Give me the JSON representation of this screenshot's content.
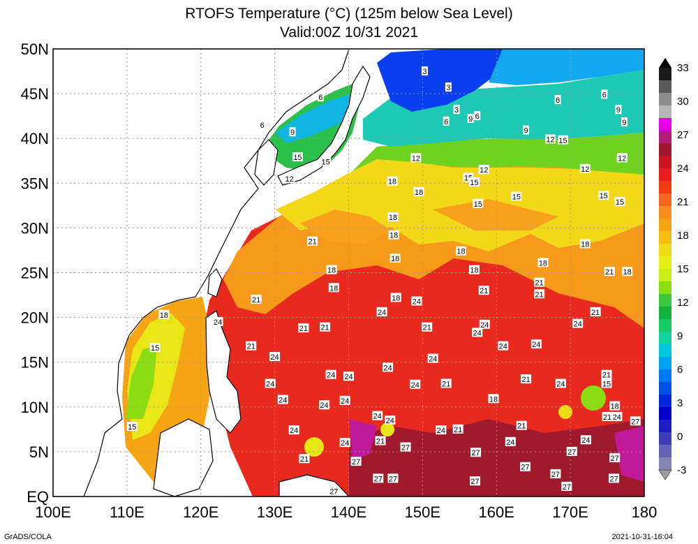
{
  "title_line1": "RTOFS Temperature (°C) (125m below Sea Level)",
  "title_line2": "Valid:00Z 10/31 2021",
  "footer_left": "GrADS/COLA",
  "footer_right": "2021-10-31-16:04",
  "lat_labels": [
    "50N",
    "45N",
    "40N",
    "35N",
    "30N",
    "25N",
    "20N",
    "15N",
    "10N",
    "5N",
    "EQ"
  ],
  "lon_labels": [
    "100E",
    "110E",
    "120E",
    "130E",
    "140E",
    "150E",
    "160E",
    "170E",
    "180"
  ],
  "colorbar": {
    "labels": [
      "33",
      "30",
      "27",
      "24",
      "21",
      "18",
      "15",
      "12",
      "9",
      "6",
      "3",
      "0",
      "-3"
    ],
    "colors": [
      "#1a1a1a",
      "#5a5a5a",
      "#8c8c8c",
      "#b4b4b4",
      "#e600e6",
      "#b01e78",
      "#a0182d",
      "#c8141e",
      "#e61e1e",
      "#f03c14",
      "#f5641e",
      "#fa8c1e",
      "#f5a514",
      "#f5be14",
      "#f0dc14",
      "#e6f014",
      "#c8f014",
      "#8cdc14",
      "#3cc83c",
      "#14b43c",
      "#14c864",
      "#14d2a0",
      "#00c8dc",
      "#00a0f0",
      "#0078f0",
      "#0050e6",
      "#0028dc",
      "#0000c8",
      "#1e1ebe",
      "#3c3cb4",
      "#6464b4",
      "#8282b4"
    ],
    "tip_top": "#000000",
    "tip_bottom": "#9e9e9e"
  },
  "contour_labels": [
    {
      "text": "3",
      "lon": 150.3,
      "lat": 47.5
    },
    {
      "text": "3",
      "lon": 153.5,
      "lat": 45.7
    },
    {
      "text": "6",
      "lon": 128.3,
      "lat": 41.5
    },
    {
      "text": "9",
      "lon": 132.4,
      "lat": 40.7
    },
    {
      "text": "6",
      "lon": 136.2,
      "lat": 44.6
    },
    {
      "text": "3",
      "lon": 154.6,
      "lat": 43.2
    },
    {
      "text": "6",
      "lon": 153.2,
      "lat": 41.9
    },
    {
      "text": "9",
      "lon": 156.5,
      "lat": 42.2
    },
    {
      "text": "6",
      "lon": 157.4,
      "lat": 42.5
    },
    {
      "text": "6",
      "lon": 168.3,
      "lat": 44.3
    },
    {
      "text": "6",
      "lon": 174.6,
      "lat": 44.9
    },
    {
      "text": "9",
      "lon": 176.5,
      "lat": 43.2
    },
    {
      "text": "9",
      "lon": 177.3,
      "lat": 41.8
    },
    {
      "text": "9",
      "lon": 164.0,
      "lat": 40.9
    },
    {
      "text": "12",
      "lon": 167.3,
      "lat": 39.9
    },
    {
      "text": "15",
      "lon": 169.0,
      "lat": 39.8
    },
    {
      "text": "15",
      "lon": 133.1,
      "lat": 37.9
    },
    {
      "text": "12",
      "lon": 149.1,
      "lat": 37.8
    },
    {
      "text": "12",
      "lon": 132.0,
      "lat": 35.5
    },
    {
      "text": "15",
      "lon": 136.9,
      "lat": 37.4
    },
    {
      "text": "12",
      "lon": 158.3,
      "lat": 36.5
    },
    {
      "text": "15",
      "lon": 156.2,
      "lat": 35.6
    },
    {
      "text": "15",
      "lon": 157.0,
      "lat": 35.1
    },
    {
      "text": "12",
      "lon": 172.0,
      "lat": 36.6
    },
    {
      "text": "12",
      "lon": 177.0,
      "lat": 37.8
    },
    {
      "text": "18",
      "lon": 145.9,
      "lat": 35.2
    },
    {
      "text": "18",
      "lon": 149.5,
      "lat": 34.0
    },
    {
      "text": "15",
      "lon": 157.5,
      "lat": 32.7
    },
    {
      "text": "15",
      "lon": 162.7,
      "lat": 33.5
    },
    {
      "text": "15",
      "lon": 174.5,
      "lat": 33.6
    },
    {
      "text": "15",
      "lon": 176.7,
      "lat": 32.9
    },
    {
      "text": "18",
      "lon": 146.0,
      "lat": 31.2
    },
    {
      "text": "21",
      "lon": 135.1,
      "lat": 28.5
    },
    {
      "text": "18",
      "lon": 146.1,
      "lat": 29.2
    },
    {
      "text": "18",
      "lon": 172.0,
      "lat": 28.2
    },
    {
      "text": "18",
      "lon": 155.2,
      "lat": 27.4
    },
    {
      "text": "18",
      "lon": 146.3,
      "lat": 26.6
    },
    {
      "text": "18",
      "lon": 137.7,
      "lat": 25.3
    },
    {
      "text": "18",
      "lon": 157.0,
      "lat": 25.3
    },
    {
      "text": "18",
      "lon": 166.3,
      "lat": 26.1
    },
    {
      "text": "21",
      "lon": 175.3,
      "lat": 25.1
    },
    {
      "text": "18",
      "lon": 177.7,
      "lat": 25.1
    },
    {
      "text": "18",
      "lon": 138.0,
      "lat": 23.3
    },
    {
      "text": "21",
      "lon": 158.3,
      "lat": 23.0
    },
    {
      "text": "21",
      "lon": 165.8,
      "lat": 23.9
    },
    {
      "text": "21",
      "lon": 165.8,
      "lat": 22.6
    },
    {
      "text": "18",
      "lon": 146.4,
      "lat": 22.2
    },
    {
      "text": "24",
      "lon": 149.2,
      "lat": 21.8
    },
    {
      "text": "21",
      "lon": 127.5,
      "lat": 22.0
    },
    {
      "text": "24",
      "lon": 144.5,
      "lat": 20.6
    },
    {
      "text": "21",
      "lon": 173.4,
      "lat": 20.6
    },
    {
      "text": "24",
      "lon": 122.3,
      "lat": 19.5
    },
    {
      "text": "18",
      "lon": 115.0,
      "lat": 20.3
    },
    {
      "text": "21",
      "lon": 133.9,
      "lat": 18.8
    },
    {
      "text": "21",
      "lon": 136.8,
      "lat": 18.9
    },
    {
      "text": "21",
      "lon": 150.6,
      "lat": 18.9
    },
    {
      "text": "24",
      "lon": 158.4,
      "lat": 19.2
    },
    {
      "text": "24",
      "lon": 157.4,
      "lat": 18.3
    },
    {
      "text": "24",
      "lon": 171.0,
      "lat": 19.3
    },
    {
      "text": "15",
      "lon": 113.8,
      "lat": 16.6
    },
    {
      "text": "21",
      "lon": 126.8,
      "lat": 16.8
    },
    {
      "text": "24",
      "lon": 160.9,
      "lat": 16.8
    },
    {
      "text": "24",
      "lon": 165.4,
      "lat": 17.0
    },
    {
      "text": "24",
      "lon": 130.0,
      "lat": 15.6
    },
    {
      "text": "24",
      "lon": 151.4,
      "lat": 15.4
    },
    {
      "text": "24",
      "lon": 145.3,
      "lat": 14.4
    },
    {
      "text": "24",
      "lon": 137.6,
      "lat": 13.6
    },
    {
      "text": "24",
      "lon": 140.0,
      "lat": 13.4
    },
    {
      "text": "21",
      "lon": 174.9,
      "lat": 13.6
    },
    {
      "text": "21",
      "lon": 164.0,
      "lat": 13.1
    },
    {
      "text": "24",
      "lon": 129.4,
      "lat": 12.6
    },
    {
      "text": "24",
      "lon": 149.0,
      "lat": 12.5
    },
    {
      "text": "21",
      "lon": 153.2,
      "lat": 12.6
    },
    {
      "text": "24",
      "lon": 168.7,
      "lat": 12.6
    },
    {
      "text": "15",
      "lon": 174.9,
      "lat": 12.6
    },
    {
      "text": "24",
      "lon": 131.1,
      "lat": 10.8
    },
    {
      "text": "24",
      "lon": 139.5,
      "lat": 10.7
    },
    {
      "text": "18",
      "lon": 159.6,
      "lat": 10.9
    },
    {
      "text": "24",
      "lon": 136.7,
      "lat": 10.2
    },
    {
      "text": "18",
      "lon": 176.0,
      "lat": 10.1
    },
    {
      "text": "24",
      "lon": 143.9,
      "lat": 9.0
    },
    {
      "text": "24",
      "lon": 145.6,
      "lat": 8.5
    },
    {
      "text": "21",
      "lon": 175.0,
      "lat": 8.9
    },
    {
      "text": "24",
      "lon": 176.3,
      "lat": 8.9
    },
    {
      "text": "27",
      "lon": 178.8,
      "lat": 8.4
    },
    {
      "text": "15",
      "lon": 110.7,
      "lat": 7.8
    },
    {
      "text": "24",
      "lon": 132.6,
      "lat": 7.4
    },
    {
      "text": "24",
      "lon": 152.5,
      "lat": 7.4
    },
    {
      "text": "21",
      "lon": 154.8,
      "lat": 7.5
    },
    {
      "text": "21",
      "lon": 163.4,
      "lat": 7.9
    },
    {
      "text": "21",
      "lon": 144.3,
      "lat": 6.2
    },
    {
      "text": "24",
      "lon": 139.5,
      "lat": 6.0
    },
    {
      "text": "24",
      "lon": 161.9,
      "lat": 6.1
    },
    {
      "text": "24",
      "lon": 172.1,
      "lat": 6.3
    },
    {
      "text": "27",
      "lon": 147.7,
      "lat": 5.5
    },
    {
      "text": "27",
      "lon": 157.2,
      "lat": 4.9
    },
    {
      "text": "27",
      "lon": 170.2,
      "lat": 5.0
    },
    {
      "text": "21",
      "lon": 134.0,
      "lat": 4.2
    },
    {
      "text": "27",
      "lon": 141.0,
      "lat": 3.9
    },
    {
      "text": "27",
      "lon": 176.0,
      "lat": 4.3
    },
    {
      "text": "27",
      "lon": 163.9,
      "lat": 3.3
    },
    {
      "text": "27",
      "lon": 144.0,
      "lat": 2.0
    },
    {
      "text": "27",
      "lon": 146.0,
      "lat": 2.0
    },
    {
      "text": "27",
      "lon": 157.1,
      "lat": 1.7
    },
    {
      "text": "27",
      "lon": 168.0,
      "lat": 2.5
    },
    {
      "text": "27",
      "lon": 175.9,
      "lat": 2.0
    },
    {
      "text": "27",
      "lon": 169.5,
      "lat": 1.1
    },
    {
      "text": "27",
      "lon": 138.0,
      "lat": 0.6
    }
  ]
}
